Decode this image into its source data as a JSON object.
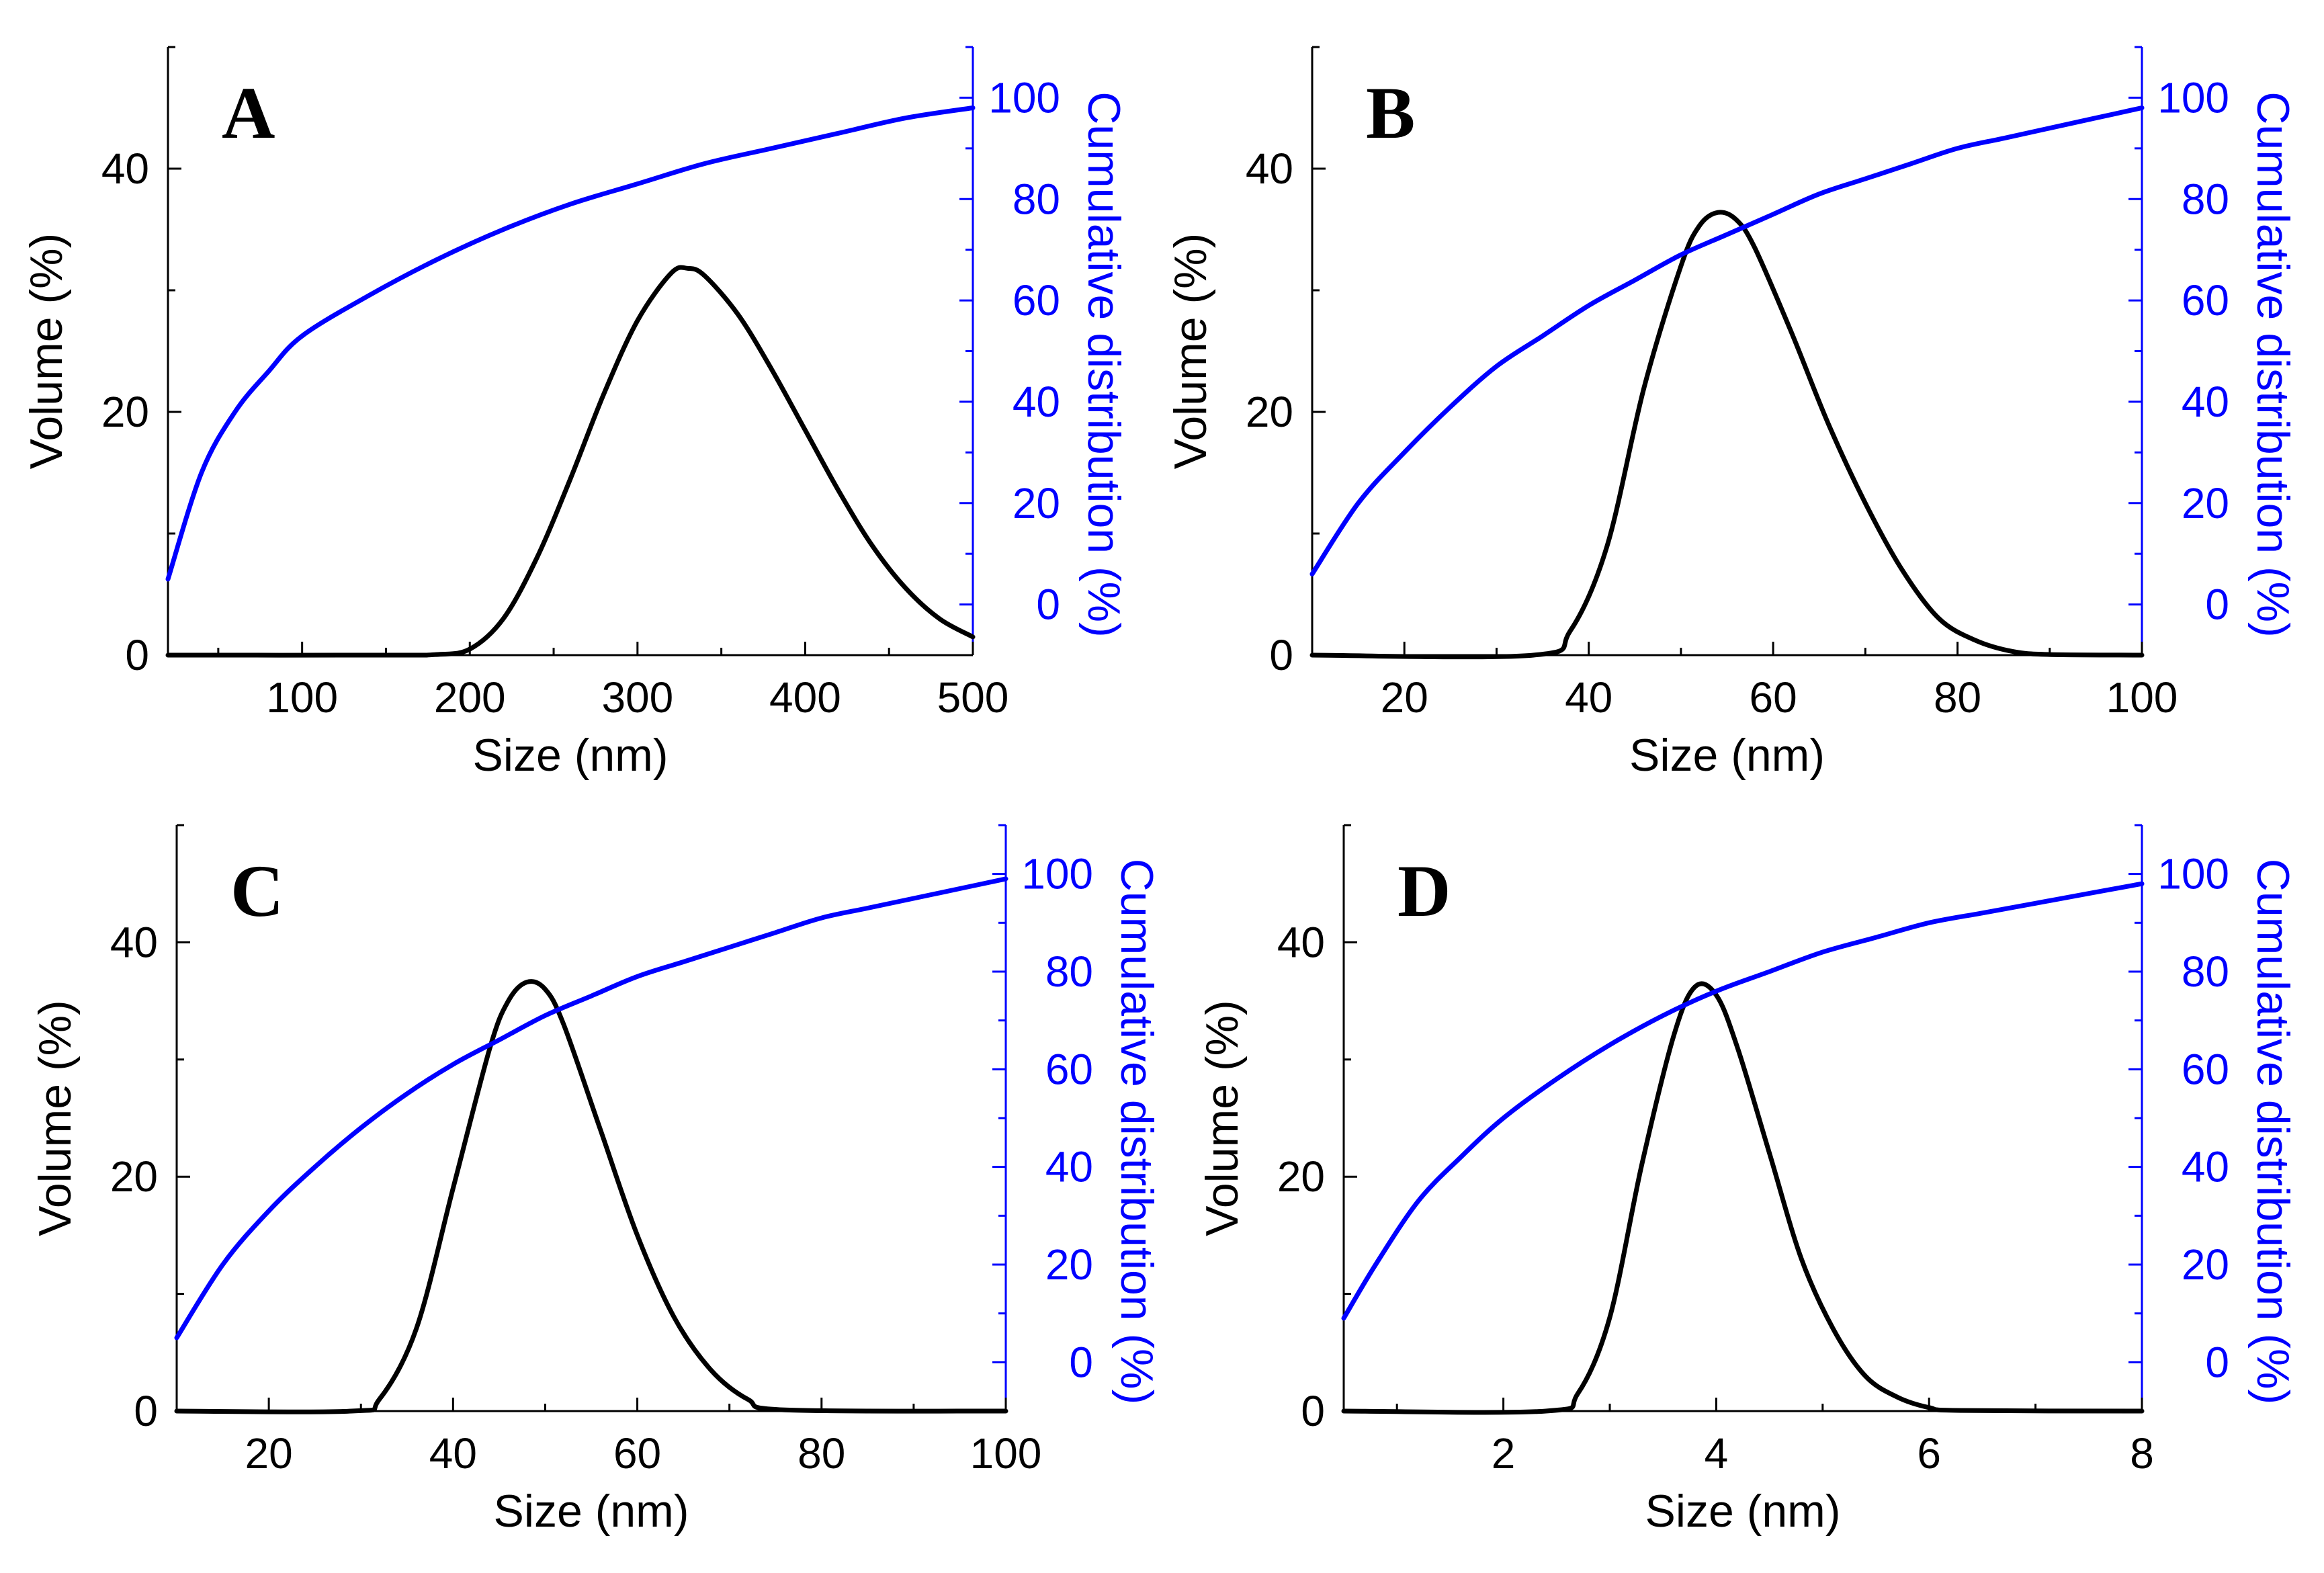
{
  "colors": {
    "volume": "#000000",
    "cumulative": "#0000ff"
  },
  "chart_data": [
    {
      "panel": "A",
      "type": "line",
      "xlabel": "Size (nm)",
      "ylabel": "Volume (%)",
      "y2label": "Cumulative distribution (%)",
      "xlim": [
        20,
        500
      ],
      "ylim": [
        0,
        50
      ],
      "y2lim": [
        -10,
        110
      ],
      "xticks": [
        100,
        200,
        300,
        400,
        500
      ],
      "yticks": [
        0,
        20,
        40
      ],
      "y2ticks": [
        0,
        20,
        40,
        60,
        80,
        100
      ],
      "series": [
        {
          "name": "Volume",
          "axis": "left",
          "x": [
            20,
            150,
            180,
            200,
            220,
            240,
            260,
            280,
            300,
            320,
            330,
            340,
            360,
            380,
            400,
            420,
            440,
            460,
            480,
            500
          ],
          "y": [
            0,
            0,
            0.05,
            0.5,
            3,
            8,
            14.5,
            21.5,
            27.5,
            31.4,
            31.8,
            31.2,
            28,
            23.5,
            18.5,
            13.5,
            9,
            5.5,
            3,
            1.5
          ]
        },
        {
          "name": "Cumulative distribution",
          "axis": "right",
          "x": [
            20,
            40,
            60,
            80,
            100,
            140,
            180,
            220,
            260,
            300,
            340,
            380,
            420,
            460,
            500
          ],
          "y": [
            5,
            26,
            38,
            46,
            53,
            61,
            68,
            74,
            79,
            83,
            87,
            90,
            93,
            96,
            98
          ]
        }
      ]
    },
    {
      "panel": "B",
      "type": "line",
      "xlabel": "Size (nm)",
      "ylabel": "Volume (%)",
      "y2label": "Cumulative distribution (%)",
      "xlim": [
        10,
        100
      ],
      "ylim": [
        0,
        50
      ],
      "y2lim": [
        -10,
        110
      ],
      "xticks": [
        20,
        40,
        60,
        80,
        100
      ],
      "yticks": [
        0,
        20,
        40
      ],
      "y2ticks": [
        0,
        20,
        40,
        60,
        80,
        100
      ],
      "series": [
        {
          "name": "Volume",
          "axis": "left",
          "x": [
            10,
            34,
            38,
            42,
            46,
            50,
            52,
            54,
            56,
            58,
            62,
            66,
            70,
            74,
            78,
            82,
            86,
            90,
            100
          ],
          "y": [
            0,
            0,
            2,
            9,
            22,
            32,
            35.3,
            36.4,
            35.8,
            33.5,
            26.5,
            19,
            12.5,
            7,
            3,
            1.2,
            0.3,
            0.05,
            0
          ]
        },
        {
          "name": "Cumulative distribution",
          "axis": "right",
          "x": [
            10,
            15,
            20,
            25,
            30,
            35,
            40,
            45,
            50,
            55,
            60,
            65,
            70,
            75,
            80,
            85,
            90,
            95,
            100
          ],
          "y": [
            6,
            20,
            30,
            39,
            47,
            53,
            59,
            64,
            69,
            73,
            77,
            81,
            84,
            87,
            90,
            92,
            94,
            96,
            98
          ]
        }
      ]
    },
    {
      "panel": "C",
      "type": "line",
      "xlabel": "Size (nm)",
      "ylabel": "Volume (%)",
      "y2label": "Cumulative distribution (%)",
      "xlim": [
        10,
        100
      ],
      "ylim": [
        0,
        50
      ],
      "y2lim": [
        -10,
        110
      ],
      "xticks": [
        20,
        40,
        60,
        80,
        100
      ],
      "yticks": [
        0,
        20,
        40
      ],
      "y2ticks": [
        0,
        20,
        40,
        60,
        80,
        100
      ],
      "series": [
        {
          "name": "Volume",
          "axis": "left",
          "x": [
            10,
            29,
            32,
            36,
            40,
            44,
            46,
            48,
            50,
            52,
            56,
            60,
            64,
            68,
            72,
            76,
            100
          ],
          "y": [
            0,
            0,
            1,
            7,
            19,
            31,
            35,
            36.6,
            36,
            33,
            24,
            15,
            8,
            3.5,
            1,
            0.1,
            0
          ]
        },
        {
          "name": "Cumulative distribution",
          "axis": "right",
          "x": [
            10,
            15,
            20,
            25,
            30,
            35,
            40,
            45,
            50,
            55,
            60,
            65,
            70,
            75,
            80,
            85,
            90,
            95,
            100
          ],
          "y": [
            5,
            20,
            31,
            40,
            48,
            55,
            61,
            66,
            71,
            75,
            79,
            82,
            85,
            88,
            91,
            93,
            95,
            97,
            99
          ]
        }
      ]
    },
    {
      "panel": "D",
      "type": "line",
      "xlabel": "Size (nm)",
      "ylabel": "Volume (%)",
      "y2label": "Cumulative distribution (%)",
      "xlim": [
        0.5,
        8
      ],
      "ylim": [
        0,
        50
      ],
      "y2lim": [
        -10,
        110
      ],
      "xticks": [
        2,
        4,
        6,
        8
      ],
      "yticks": [
        0,
        20,
        40
      ],
      "y2ticks": [
        0,
        20,
        40,
        60,
        80,
        100
      ],
      "series": [
        {
          "name": "Volume",
          "axis": "left",
          "x": [
            0.5,
            2.4,
            2.7,
            3.0,
            3.3,
            3.6,
            3.8,
            4.0,
            4.2,
            4.5,
            4.8,
            5.1,
            5.4,
            5.7,
            6.0,
            6.3,
            8.0
          ],
          "y": [
            0,
            0,
            1.5,
            8,
            21,
            32,
            36.2,
            35.5,
            31,
            22,
            13,
            7,
            3,
            1.2,
            0.3,
            0.05,
            0
          ]
        },
        {
          "name": "Cumulative distribution",
          "axis": "right",
          "x": [
            0.5,
            0.8,
            1.2,
            1.6,
            2.0,
            2.5,
            3.0,
            3.5,
            4.0,
            4.5,
            5.0,
            5.5,
            6.0,
            6.5,
            7.0,
            7.5,
            8.0
          ],
          "y": [
            9,
            20,
            33,
            42,
            50,
            58,
            65,
            71,
            76,
            80,
            84,
            87,
            90,
            92,
            94,
            96,
            98
          ]
        }
      ]
    }
  ]
}
